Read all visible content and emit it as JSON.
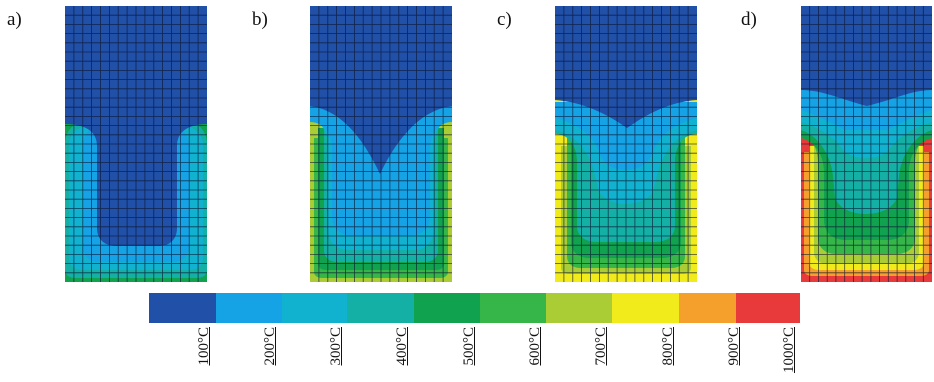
{
  "panels": [
    {
      "label": "a)"
    },
    {
      "label": "b)"
    },
    {
      "label": "c)"
    },
    {
      "label": "d)"
    }
  ],
  "legend": {
    "labels": [
      "100°C",
      "200°C",
      "300°C",
      "400°C",
      "500°C",
      "600°C",
      "700°C",
      "800°C",
      "900°C",
      "1000°C"
    ],
    "colors": [
      "#2050a8",
      "#16a3e6",
      "#10b2cf",
      "#14b0a6",
      "#10a24e",
      "#36b648",
      "#aacd36",
      "#f2eb1c",
      "#f5a02c",
      "#e83a3a"
    ]
  }
}
